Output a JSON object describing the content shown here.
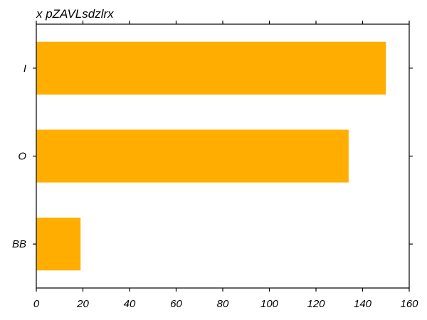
{
  "chart_data": {
    "type": "bar",
    "orientation": "horizontal",
    "title": "x pZAVLsdzlrx",
    "xlabel": "",
    "ylabel": "",
    "categories": [
      "I",
      "O",
      "BB"
    ],
    "values": [
      150,
      134,
      19
    ],
    "xlim": [
      0,
      160
    ],
    "xticks": [
      0,
      20,
      40,
      60,
      80,
      100,
      120,
      140,
      160
    ],
    "grid": false,
    "bar_color": "#FFAE00",
    "axis_color": "#000000"
  }
}
